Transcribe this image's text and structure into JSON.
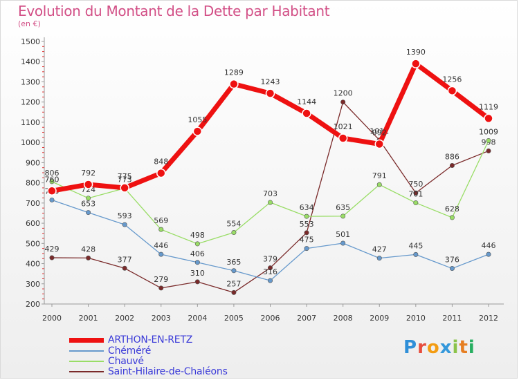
{
  "header": {
    "title": "Evolution du Montant de la Dette par Habitant",
    "subtitle": "(en €)"
  },
  "logo": {
    "letters": [
      "P",
      "r",
      "o",
      "x",
      "i",
      "t",
      "i"
    ],
    "colors": [
      "#2f8fd8",
      "#e74c3c",
      "#f39c12",
      "#3498db",
      "#8bc34a",
      "#e67e22",
      "#27ae60"
    ]
  },
  "chart_data": {
    "type": "line",
    "title": "Evolution du Montant de la Dette par Habitant",
    "subtitle": "(en €)",
    "xlabel": "",
    "ylabel": "",
    "categories": [
      "2000",
      "2001",
      "2002",
      "2003",
      "2004",
      "2005",
      "2006",
      "2007",
      "2008",
      "2009",
      "2010",
      "2011",
      "2012"
    ],
    "ylim": [
      200,
      1500
    ],
    "yticks": [
      200,
      300,
      400,
      500,
      600,
      700,
      800,
      900,
      1000,
      1100,
      1200,
      1300,
      1400,
      1500
    ],
    "grid": false,
    "legend_position": "bottom-left",
    "series": [
      {
        "name": "Saint-Hilaire-de-Chaléons",
        "color": "#7a2a2a",
        "values": [
          429,
          428,
          377,
          279,
          310,
          257,
          379,
          553,
          1200,
          1012,
          750,
          886,
          958
        ]
      },
      {
        "name": "Chauvé",
        "color": "#99dd66",
        "values": [
          806,
          724,
          773,
          569,
          498,
          554,
          703,
          634,
          635,
          791,
          701,
          628,
          1009
        ]
      },
      {
        "name": "Chéméré",
        "color": "#6699cc",
        "values": [
          715,
          653,
          593,
          446,
          406,
          365,
          316,
          475,
          501,
          427,
          445,
          376,
          446
        ]
      },
      {
        "name": "ARTHON-EN-RETZ",
        "color": "#ee1111",
        "values": [
          760,
          792,
          775,
          848,
          1055,
          1289,
          1243,
          1144,
          1021,
          992,
          1390,
          1256,
          1119
        ]
      }
    ]
  },
  "legend": {
    "items": [
      {
        "label": "ARTHON-EN-RETZ",
        "color": "#ee1111"
      },
      {
        "label": "Chéméré",
        "color": "#6699cc"
      },
      {
        "label": "Chauvé",
        "color": "#99dd66"
      },
      {
        "label": "Saint-Hilaire-de-Chaléons",
        "color": "#7a2a2a"
      }
    ]
  }
}
